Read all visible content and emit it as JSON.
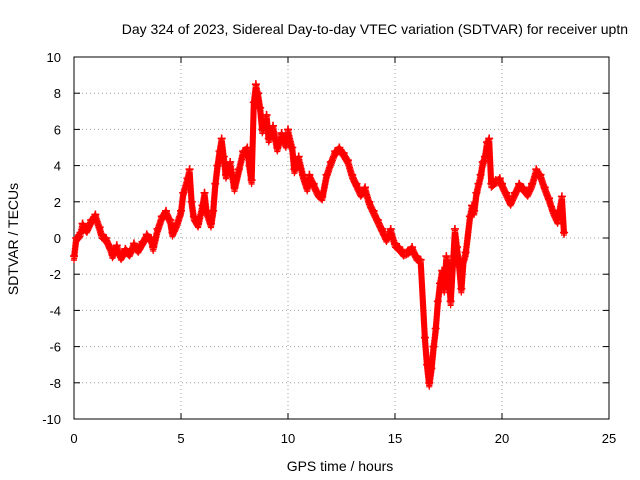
{
  "chart_data": {
    "type": "scatter",
    "title": "Day 324 of 2023, Sidereal Day-to-day VTEC variation (SDTVAR) for receiver uptn",
    "xlabel": "GPS time / hours",
    "ylabel": "SDTVAR / TECUs",
    "xlim": [
      0,
      25
    ],
    "ylim": [
      -10,
      10
    ],
    "xticks": [
      0,
      5,
      10,
      15,
      20,
      25
    ],
    "yticks": [
      -10,
      -8,
      -6,
      -4,
      -2,
      0,
      2,
      4,
      6,
      8,
      10
    ],
    "xtick_labels": [
      "0",
      "5",
      "10",
      "15",
      "20",
      "25"
    ],
    "ytick_labels": [
      "-10",
      "-8",
      "-6",
      "-4",
      "-2",
      "0",
      "2",
      "4",
      "6",
      "8",
      "10"
    ],
    "grid": true,
    "marker": "+",
    "color": "#ff0000",
    "series": [
      {
        "name": "SDTVAR",
        "points": [
          [
            0.0,
            -1.0
          ],
          [
            0.1,
            0.0
          ],
          [
            0.3,
            0.3
          ],
          [
            0.4,
            0.8
          ],
          [
            0.6,
            0.5
          ],
          [
            0.8,
            1.0
          ],
          [
            1.0,
            1.3
          ],
          [
            1.2,
            0.6
          ],
          [
            1.3,
            0.2
          ],
          [
            1.5,
            0.0
          ],
          [
            1.7,
            -0.5
          ],
          [
            1.8,
            -0.9
          ],
          [
            2.0,
            -0.4
          ],
          [
            2.2,
            -1.0
          ],
          [
            2.4,
            -0.6
          ],
          [
            2.6,
            -0.8
          ],
          [
            2.8,
            -0.3
          ],
          [
            3.0,
            -0.6
          ],
          [
            3.2,
            -0.2
          ],
          [
            3.4,
            0.2
          ],
          [
            3.6,
            0.0
          ],
          [
            3.7,
            -0.5
          ],
          [
            3.9,
            0.5
          ],
          [
            4.1,
            1.2
          ],
          [
            4.3,
            1.5
          ],
          [
            4.5,
            1.0
          ],
          [
            4.6,
            0.3
          ],
          [
            4.8,
            0.8
          ],
          [
            5.0,
            1.5
          ],
          [
            5.1,
            2.5
          ],
          [
            5.3,
            3.3
          ],
          [
            5.4,
            3.8
          ],
          [
            5.5,
            2.0
          ],
          [
            5.6,
            1.2
          ],
          [
            5.8,
            0.8
          ],
          [
            6.0,
            1.8
          ],
          [
            6.1,
            2.5
          ],
          [
            6.2,
            1.5
          ],
          [
            6.4,
            0.8
          ],
          [
            6.5,
            1.5
          ],
          [
            6.6,
            3.0
          ],
          [
            6.7,
            4.0
          ],
          [
            6.8,
            4.8
          ],
          [
            6.9,
            5.5
          ],
          [
            7.0,
            4.5
          ],
          [
            7.1,
            3.5
          ],
          [
            7.3,
            4.2
          ],
          [
            7.5,
            2.8
          ],
          [
            7.7,
            3.8
          ],
          [
            7.9,
            4.8
          ],
          [
            8.1,
            5.0
          ],
          [
            8.2,
            4.0
          ],
          [
            8.3,
            3.2
          ],
          [
            8.4,
            7.5
          ],
          [
            8.5,
            8.5
          ],
          [
            8.6,
            8.0
          ],
          [
            8.7,
            7.2
          ],
          [
            8.8,
            6.0
          ],
          [
            9.0,
            6.8
          ],
          [
            9.1,
            5.5
          ],
          [
            9.3,
            6.2
          ],
          [
            9.5,
            5.0
          ],
          [
            9.7,
            5.8
          ],
          [
            9.9,
            5.2
          ],
          [
            10.0,
            6.0
          ],
          [
            10.2,
            5.0
          ],
          [
            10.3,
            3.8
          ],
          [
            10.5,
            4.5
          ],
          [
            10.7,
            3.5
          ],
          [
            10.9,
            2.8
          ],
          [
            11.0,
            3.5
          ],
          [
            11.2,
            3.0
          ],
          [
            11.4,
            2.5
          ],
          [
            11.6,
            2.3
          ],
          [
            11.8,
            3.5
          ],
          [
            12.0,
            4.2
          ],
          [
            12.2,
            4.8
          ],
          [
            12.4,
            5.0
          ],
          [
            12.6,
            4.7
          ],
          [
            12.8,
            4.3
          ],
          [
            13.0,
            3.5
          ],
          [
            13.2,
            3.0
          ],
          [
            13.4,
            2.5
          ],
          [
            13.6,
            2.8
          ],
          [
            13.8,
            2.0
          ],
          [
            14.0,
            1.5
          ],
          [
            14.2,
            1.0
          ],
          [
            14.4,
            0.5
          ],
          [
            14.6,
            0.0
          ],
          [
            14.8,
            0.5
          ],
          [
            15.0,
            -0.3
          ],
          [
            15.2,
            -0.5
          ],
          [
            15.4,
            -0.8
          ],
          [
            15.6,
            -0.7
          ],
          [
            15.8,
            -0.5
          ],
          [
            16.0,
            -1.0
          ],
          [
            16.2,
            -1.2
          ],
          [
            16.4,
            -5.5
          ],
          [
            16.5,
            -7.0
          ],
          [
            16.6,
            -8.0
          ],
          [
            16.7,
            -7.2
          ],
          [
            16.8,
            -6.0
          ],
          [
            16.9,
            -5.0
          ],
          [
            17.0,
            -3.5
          ],
          [
            17.1,
            -2.5
          ],
          [
            17.2,
            -1.8
          ],
          [
            17.3,
            -2.8
          ],
          [
            17.4,
            -1.0
          ],
          [
            17.5,
            -1.5
          ],
          [
            17.6,
            -3.5
          ],
          [
            17.7,
            -1.5
          ],
          [
            17.8,
            0.5
          ],
          [
            17.9,
            -0.5
          ],
          [
            18.0,
            -1.5
          ],
          [
            18.1,
            -2.8
          ],
          [
            18.2,
            -1.2
          ],
          [
            18.3,
            -0.8
          ],
          [
            18.5,
            1.2
          ],
          [
            18.6,
            1.8
          ],
          [
            18.7,
            1.5
          ],
          [
            18.8,
            2.5
          ],
          [
            18.9,
            3.0
          ],
          [
            19.0,
            3.5
          ],
          [
            19.1,
            4.2
          ],
          [
            19.2,
            4.5
          ],
          [
            19.3,
            5.3
          ],
          [
            19.4,
            5.5
          ],
          [
            19.5,
            3.0
          ],
          [
            19.7,
            3.2
          ],
          [
            19.9,
            3.3
          ],
          [
            20.0,
            3.0
          ],
          [
            20.2,
            2.5
          ],
          [
            20.4,
            2.0
          ],
          [
            20.6,
            2.5
          ],
          [
            20.8,
            3.0
          ],
          [
            21.0,
            2.8
          ],
          [
            21.2,
            2.5
          ],
          [
            21.4,
            3.0
          ],
          [
            21.6,
            3.8
          ],
          [
            21.8,
            3.5
          ],
          [
            22.0,
            2.8
          ],
          [
            22.2,
            2.2
          ],
          [
            22.4,
            1.5
          ],
          [
            22.6,
            1.0
          ],
          [
            22.8,
            2.3
          ],
          [
            22.9,
            0.3
          ]
        ]
      }
    ]
  }
}
